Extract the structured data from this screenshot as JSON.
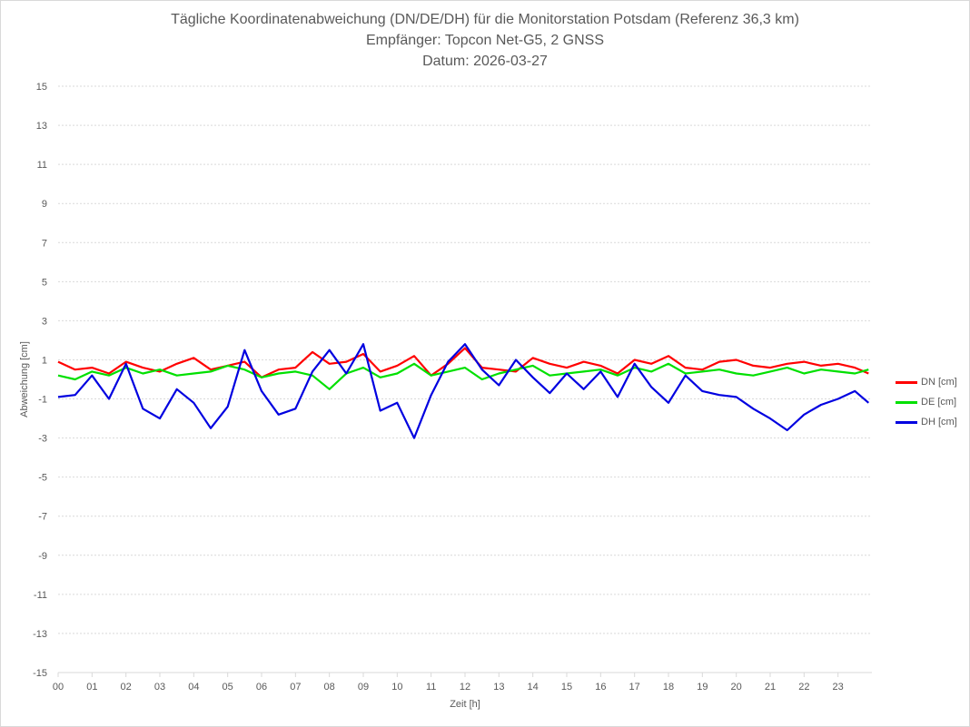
{
  "chart_data": {
    "type": "line",
    "title": "Tägliche Koordinatenabweichung (DN/DE/DH) für die Monitorstation Potsdam (Referenz 36,3 km)",
    "subtitle": "Empfänger: Topcon Net-G5, 2 GNSS",
    "date_line": "Datum: 2026-03-27",
    "xlabel": "Zeit [h]",
    "ylabel": "Abweichung [cm]",
    "xlim": [
      0,
      24
    ],
    "ylim": [
      -15,
      15
    ],
    "x_ticks": [
      "00",
      "01",
      "02",
      "03",
      "04",
      "05",
      "06",
      "07",
      "08",
      "09",
      "10",
      "11",
      "12",
      "13",
      "14",
      "15",
      "16",
      "17",
      "18",
      "19",
      "20",
      "21",
      "22",
      "23"
    ],
    "y_ticks": [
      "15",
      "13",
      "11",
      "9",
      "7",
      "5",
      "3",
      "1",
      "-1",
      "-3",
      "-5",
      "-7",
      "-9",
      "-11",
      "-13",
      "-15"
    ],
    "grid": true,
    "legend_position": "right",
    "x_hours": [
      0,
      0.5,
      1,
      1.5,
      2,
      2.5,
      3,
      3.5,
      4,
      4.5,
      5,
      5.5,
      6,
      6.5,
      7,
      7.5,
      8,
      8.5,
      9,
      9.5,
      10,
      10.5,
      11,
      11.5,
      12,
      12.5,
      13,
      13.5,
      14,
      14.5,
      15,
      15.5,
      16,
      16.5,
      17,
      17.5,
      18,
      18.5,
      19,
      19.5,
      20,
      20.5,
      21,
      21.5,
      22,
      22.5,
      23,
      23.5,
      23.9
    ],
    "series": [
      {
        "name": "DN [cm]",
        "color": "#ff0000",
        "values": [
          0.9,
          0.5,
          0.6,
          0.3,
          0.9,
          0.6,
          0.4,
          0.8,
          1.1,
          0.5,
          0.7,
          0.9,
          0.1,
          0.5,
          0.6,
          1.4,
          0.8,
          0.9,
          1.3,
          0.4,
          0.7,
          1.2,
          0.2,
          0.8,
          1.6,
          0.6,
          0.5,
          0.4,
          1.1,
          0.8,
          0.6,
          0.9,
          0.7,
          0.3,
          1.0,
          0.8,
          1.2,
          0.6,
          0.5,
          0.9,
          1.0,
          0.7,
          0.6,
          0.8,
          0.9,
          0.7,
          0.8,
          0.6,
          0.3
        ]
      },
      {
        "name": "DE [cm]",
        "color": "#00e000",
        "values": [
          0.2,
          0.0,
          0.4,
          0.2,
          0.6,
          0.3,
          0.5,
          0.2,
          0.3,
          0.4,
          0.7,
          0.5,
          0.1,
          0.3,
          0.4,
          0.2,
          -0.5,
          0.3,
          0.6,
          0.1,
          0.3,
          0.8,
          0.2,
          0.4,
          0.6,
          0.0,
          0.3,
          0.5,
          0.7,
          0.2,
          0.3,
          0.4,
          0.5,
          0.2,
          0.6,
          0.4,
          0.8,
          0.3,
          0.4,
          0.5,
          0.3,
          0.2,
          0.4,
          0.6,
          0.3,
          0.5,
          0.4,
          0.3,
          0.5
        ]
      },
      {
        "name": "DH [cm]",
        "color": "#0000e0",
        "values": [
          -0.9,
          -0.8,
          0.2,
          -1.0,
          0.8,
          -1.5,
          -2.0,
          -0.5,
          -1.2,
          -2.5,
          -1.4,
          1.5,
          -0.6,
          -1.8,
          -1.5,
          0.4,
          1.5,
          0.3,
          1.8,
          -1.6,
          -1.2,
          -3.0,
          -0.8,
          0.9,
          1.8,
          0.5,
          -0.3,
          1.0,
          0.1,
          -0.7,
          0.3,
          -0.5,
          0.4,
          -0.9,
          0.8,
          -0.4,
          -1.2,
          0.2,
          -0.6,
          -0.8,
          -0.9,
          -1.5,
          -2.0,
          -2.6,
          -1.8,
          -1.3,
          -1.0,
          -0.6,
          -1.2
        ]
      }
    ]
  }
}
